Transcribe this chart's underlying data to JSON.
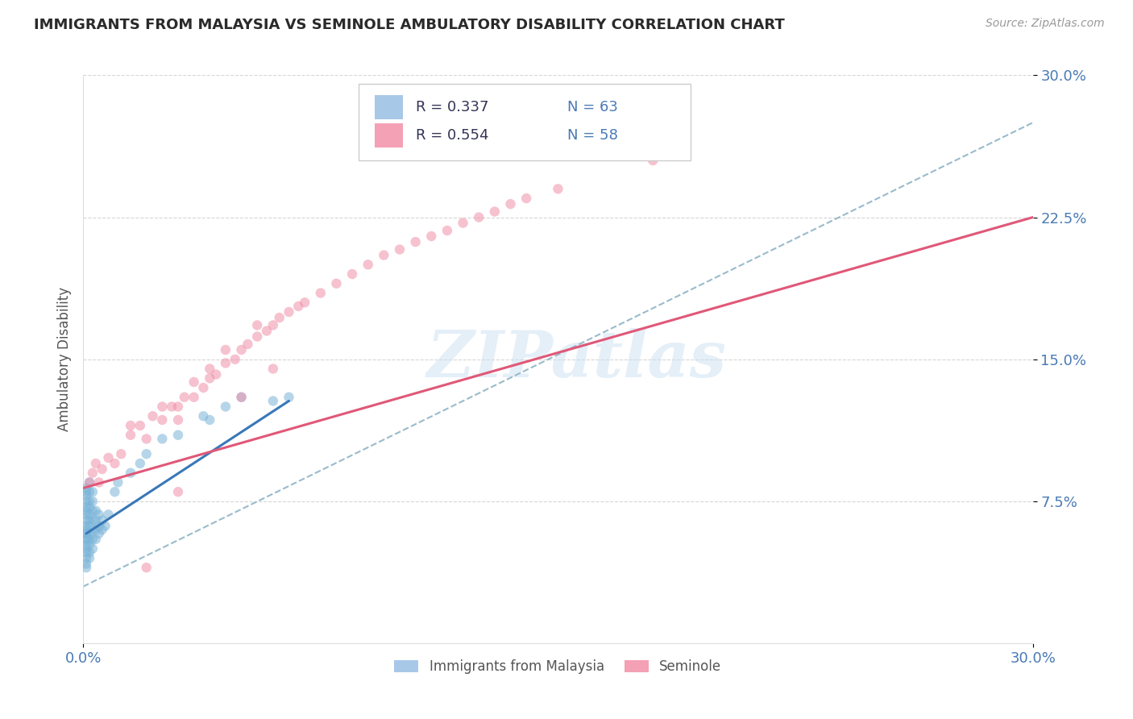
{
  "title": "IMMIGRANTS FROM MALAYSIA VS SEMINOLE AMBULATORY DISABILITY CORRELATION CHART",
  "source": "Source: ZipAtlas.com",
  "ylabel_label": "Ambulatory Disability",
  "xmin": 0.0,
  "xmax": 0.3,
  "ymin": 0.0,
  "ymax": 0.3,
  "yticks": [
    0.075,
    0.15,
    0.225,
    0.3
  ],
  "ytick_labels": [
    "7.5%",
    "15.0%",
    "22.5%",
    "30.0%"
  ],
  "xticks": [
    0.0,
    0.3
  ],
  "xtick_labels": [
    "0.0%",
    "30.0%"
  ],
  "watermark": "ZIPatlas",
  "legend_entries": [
    {
      "label": "Immigrants from Malaysia",
      "color": "#a8c8e8",
      "R": 0.337,
      "N": 63
    },
    {
      "label": "Seminole",
      "color": "#f4a0b5",
      "R": 0.554,
      "N": 58
    }
  ],
  "blue_scatter_x": [
    0.001,
    0.001,
    0.001,
    0.001,
    0.001,
    0.001,
    0.001,
    0.001,
    0.001,
    0.001,
    0.001,
    0.001,
    0.001,
    0.001,
    0.001,
    0.001,
    0.001,
    0.001,
    0.001,
    0.001,
    0.002,
    0.002,
    0.002,
    0.002,
    0.002,
    0.002,
    0.002,
    0.002,
    0.002,
    0.002,
    0.002,
    0.002,
    0.003,
    0.003,
    0.003,
    0.003,
    0.003,
    0.003,
    0.003,
    0.004,
    0.004,
    0.004,
    0.004,
    0.005,
    0.005,
    0.005,
    0.006,
    0.006,
    0.007,
    0.008,
    0.01,
    0.011,
    0.015,
    0.018,
    0.02,
    0.025,
    0.03,
    0.038,
    0.04,
    0.045,
    0.05,
    0.06,
    0.065
  ],
  "blue_scatter_y": [
    0.04,
    0.042,
    0.045,
    0.048,
    0.05,
    0.052,
    0.055,
    0.058,
    0.06,
    0.062,
    0.065,
    0.068,
    0.07,
    0.072,
    0.075,
    0.078,
    0.08,
    0.082,
    0.055,
    0.058,
    0.045,
    0.048,
    0.052,
    0.055,
    0.058,
    0.062,
    0.065,
    0.068,
    0.072,
    0.075,
    0.08,
    0.085,
    0.05,
    0.055,
    0.06,
    0.065,
    0.07,
    0.075,
    0.08,
    0.055,
    0.06,
    0.065,
    0.07,
    0.058,
    0.062,
    0.068,
    0.06,
    0.065,
    0.062,
    0.068,
    0.08,
    0.085,
    0.09,
    0.095,
    0.1,
    0.108,
    0.11,
    0.12,
    0.118,
    0.125,
    0.13,
    0.128,
    0.13
  ],
  "pink_scatter_x": [
    0.002,
    0.003,
    0.004,
    0.005,
    0.006,
    0.008,
    0.01,
    0.012,
    0.015,
    0.015,
    0.018,
    0.02,
    0.022,
    0.025,
    0.025,
    0.028,
    0.03,
    0.03,
    0.032,
    0.035,
    0.035,
    0.038,
    0.04,
    0.04,
    0.042,
    0.045,
    0.045,
    0.048,
    0.05,
    0.052,
    0.055,
    0.055,
    0.058,
    0.06,
    0.062,
    0.065,
    0.068,
    0.07,
    0.075,
    0.08,
    0.085,
    0.09,
    0.095,
    0.1,
    0.105,
    0.11,
    0.115,
    0.12,
    0.125,
    0.13,
    0.135,
    0.14,
    0.15,
    0.02,
    0.03,
    0.05,
    0.06,
    0.18
  ],
  "pink_scatter_y": [
    0.085,
    0.09,
    0.095,
    0.085,
    0.092,
    0.098,
    0.095,
    0.1,
    0.11,
    0.115,
    0.115,
    0.108,
    0.12,
    0.118,
    0.125,
    0.125,
    0.118,
    0.125,
    0.13,
    0.13,
    0.138,
    0.135,
    0.14,
    0.145,
    0.142,
    0.148,
    0.155,
    0.15,
    0.155,
    0.158,
    0.162,
    0.168,
    0.165,
    0.168,
    0.172,
    0.175,
    0.178,
    0.18,
    0.185,
    0.19,
    0.195,
    0.2,
    0.205,
    0.208,
    0.212,
    0.215,
    0.218,
    0.222,
    0.225,
    0.228,
    0.232,
    0.235,
    0.24,
    0.04,
    0.08,
    0.13,
    0.145,
    0.255
  ],
  "blue_line_x": [
    0.001,
    0.065
  ],
  "blue_line_y": [
    0.058,
    0.128
  ],
  "pink_line_x": [
    0.0,
    0.3
  ],
  "pink_line_y": [
    0.082,
    0.225
  ],
  "dashed_line_x": [
    0.0,
    0.3
  ],
  "dashed_line_y": [
    0.03,
    0.275
  ],
  "grid_color": "#cccccc",
  "background_color": "#ffffff",
  "scatter_alpha": 0.55,
  "scatter_size": 80,
  "blue_color": "#7ab4d8",
  "pink_color": "#f090a8",
  "dashed_color": "#99bbcc",
  "title_color": "#2a2a2a",
  "tick_label_color": "#4a7ab5"
}
